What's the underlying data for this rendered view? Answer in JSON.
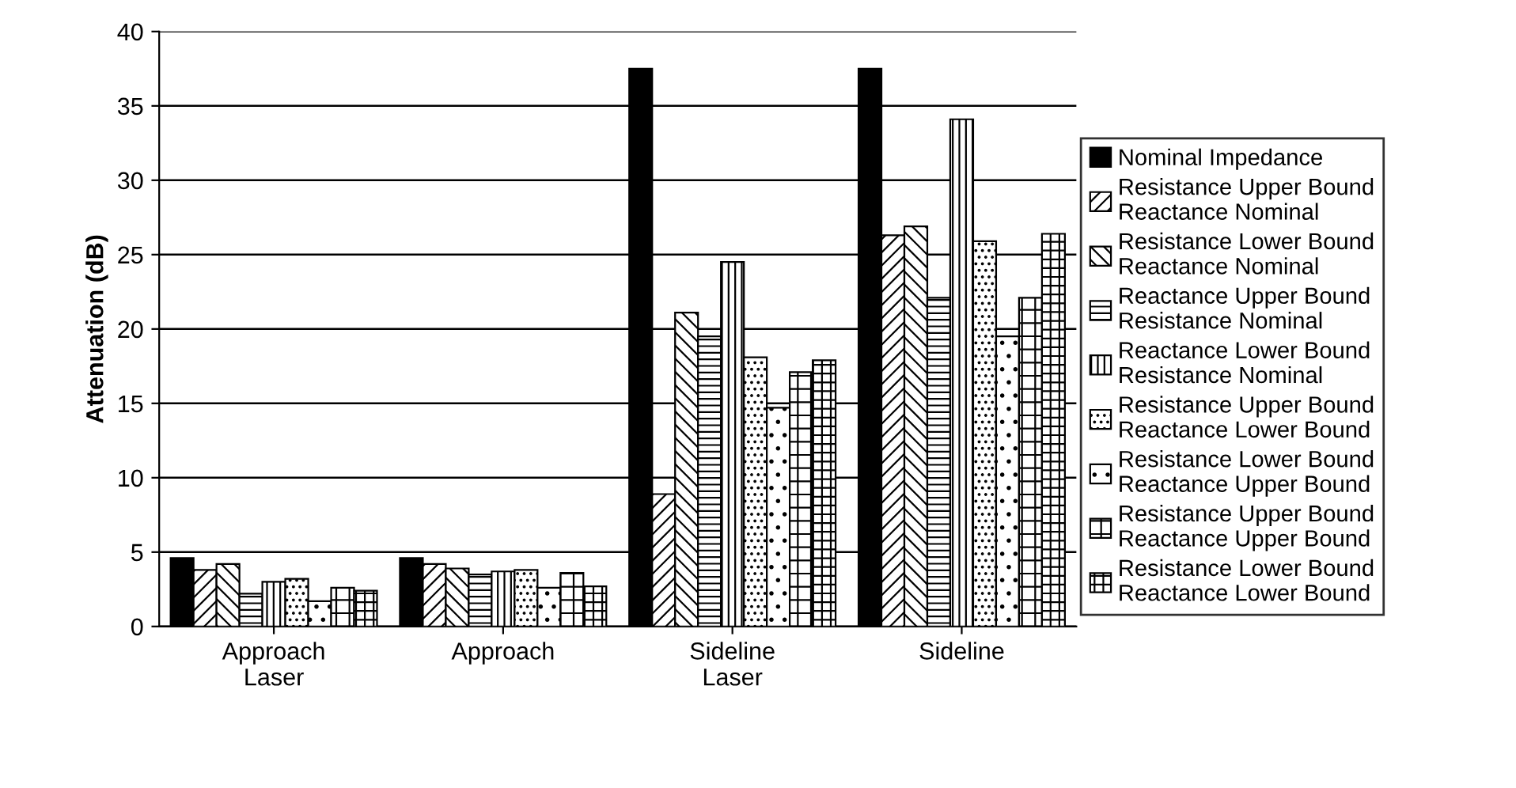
{
  "chart_data": {
    "type": "bar",
    "ylabel": "Attenuation (dB)",
    "categories": [
      "Approach\nLaser",
      "Approach",
      "Sideline\nLaser",
      "Sideline"
    ],
    "series": [
      {
        "name": "Nominal Impedance",
        "color": "#000000",
        "values": [
          4.6,
          4.6,
          37.5,
          37.5
        ]
      },
      {
        "name": "Resistance Upper Bound\nReactance Nominal",
        "color": "#000000",
        "values": [
          3.8,
          4.2,
          8.9,
          26.3
        ]
      },
      {
        "name": "Resistance Lower Bound\nReactance Nominal",
        "color": "#000000",
        "values": [
          4.2,
          3.9,
          21.1,
          26.9
        ]
      },
      {
        "name": "Reactance Upper Bound\nResistance Nominal",
        "color": "#000000",
        "values": [
          2.2,
          3.5,
          19.5,
          22.1
        ]
      },
      {
        "name": "Reactance Lower Bound\nResistance Nominal",
        "color": "#000000",
        "values": [
          3.0,
          3.7,
          24.5,
          34.1
        ]
      },
      {
        "name": "Resistance Upper Bound\nReactance Lower Bound",
        "color": "#000000",
        "values": [
          3.2,
          3.8,
          18.1,
          25.9
        ]
      },
      {
        "name": "Resistance Lower Bound\nReactance Upper Bound",
        "color": "#000000",
        "values": [
          1.7,
          2.6,
          14.7,
          19.5
        ]
      },
      {
        "name": "Resistance Upper Bound\nReactance Upper Bound",
        "color": "#000000",
        "values": [
          2.6,
          3.6,
          17.1,
          22.1
        ]
      },
      {
        "name": "Resistance Lower Bound\nReactance Lower Bound",
        "color": "#000000",
        "values": [
          2.4,
          2.7,
          17.9,
          26.4
        ]
      }
    ],
    "ylim": [
      0,
      40
    ],
    "yticks": [
      0,
      5,
      10,
      15,
      20,
      25,
      30,
      35,
      40
    ],
    "grid": "y",
    "legend": "right"
  }
}
